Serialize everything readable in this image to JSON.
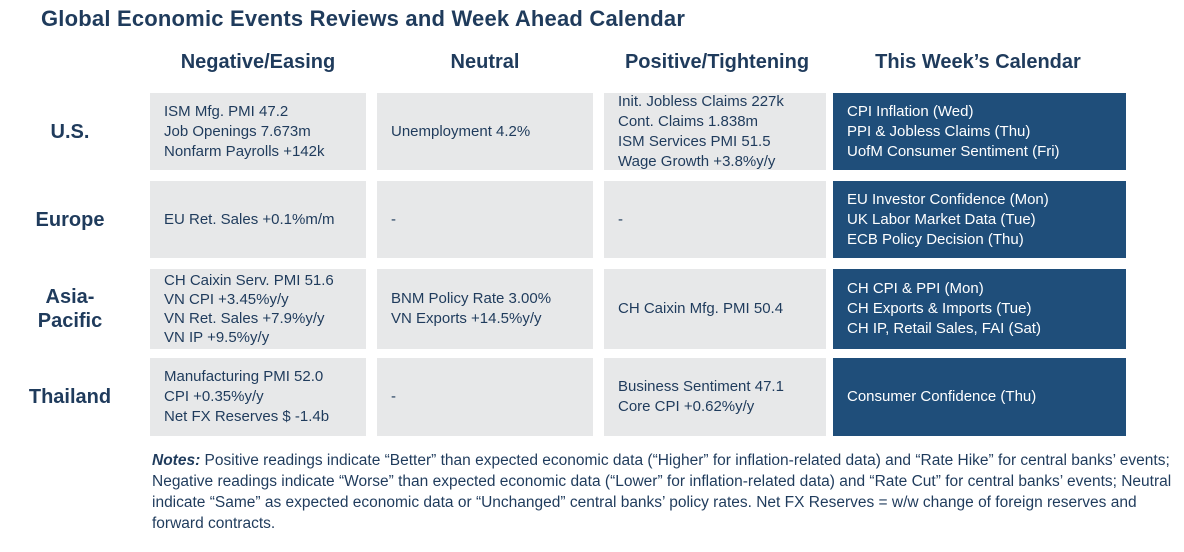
{
  "title": "Global Economic Events Reviews and Week Ahead Calendar",
  "columns": [
    "Negative/Easing",
    "Neutral",
    "Positive/Tightening",
    "This Week’s Calendar"
  ],
  "rows": [
    {
      "label": [
        "U.S."
      ],
      "negative": [
        "ISM Mfg. PMI 47.2",
        "Job Openings 7.673m",
        "Nonfarm Payrolls +142k"
      ],
      "neutral": [
        "Unemployment 4.2%"
      ],
      "positive": [
        "Init. Jobless Claims 227k",
        "Cont. Claims 1.838m",
        "ISM Services PMI 51.5",
        "Wage Growth +3.8%y/y"
      ],
      "calendar": [
        "CPI Inflation (Wed)",
        "PPI & Jobless Claims (Thu)",
        "UofM Consumer Sentiment (Fri)"
      ]
    },
    {
      "label": [
        "Europe"
      ],
      "negative": [
        "EU Ret. Sales +0.1%m/m"
      ],
      "neutral": [
        "-"
      ],
      "positive": [
        "-"
      ],
      "calendar": [
        "EU Investor Confidence (Mon)",
        "UK Labor Market Data (Tue)",
        "ECB Policy Decision (Thu)"
      ]
    },
    {
      "label": [
        "Asia-",
        "Pacific"
      ],
      "negative": [
        "CH Caixin Serv. PMI 51.6",
        "VN CPI +3.45%y/y",
        "VN Ret. Sales +7.9%y/y",
        "VN IP +9.5%y/y"
      ],
      "neutral": [
        "BNM Policy Rate 3.00%",
        "VN Exports +14.5%y/y"
      ],
      "positive": [
        "CH Caixin Mfg. PMI 50.4"
      ],
      "calendar": [
        "CH CPI & PPI (Mon)",
        "CH Exports & Imports (Tue)",
        "CH IP, Retail Sales, FAI (Sat)"
      ]
    },
    {
      "label": [
        "Thailand"
      ],
      "negative": [
        "Manufacturing PMI 52.0",
        "CPI +0.35%y/y",
        "Net FX Reserves $ -1.4b"
      ],
      "neutral": [
        "-"
      ],
      "positive": [
        "Business Sentiment 47.1",
        "Core CPI +0.62%y/y"
      ],
      "calendar": [
        "Consumer Confidence (Thu)"
      ]
    }
  ],
  "notes": {
    "label": "Notes:",
    "text": " Positive readings indicate “Better” than expected economic data (“Higher” for inflation-related data) and “Rate Hike” for central banks’ events; Negative readings indicate “Worse” than expected economic data (“Lower” for inflation-related data) and “Rate Cut” for central banks’ events; Neutral indicate “Same” as expected economic data or “Unchanged” central banks’ policy rates. Net FX Reserves = w/w change of foreign reserves and forward contracts."
  }
}
